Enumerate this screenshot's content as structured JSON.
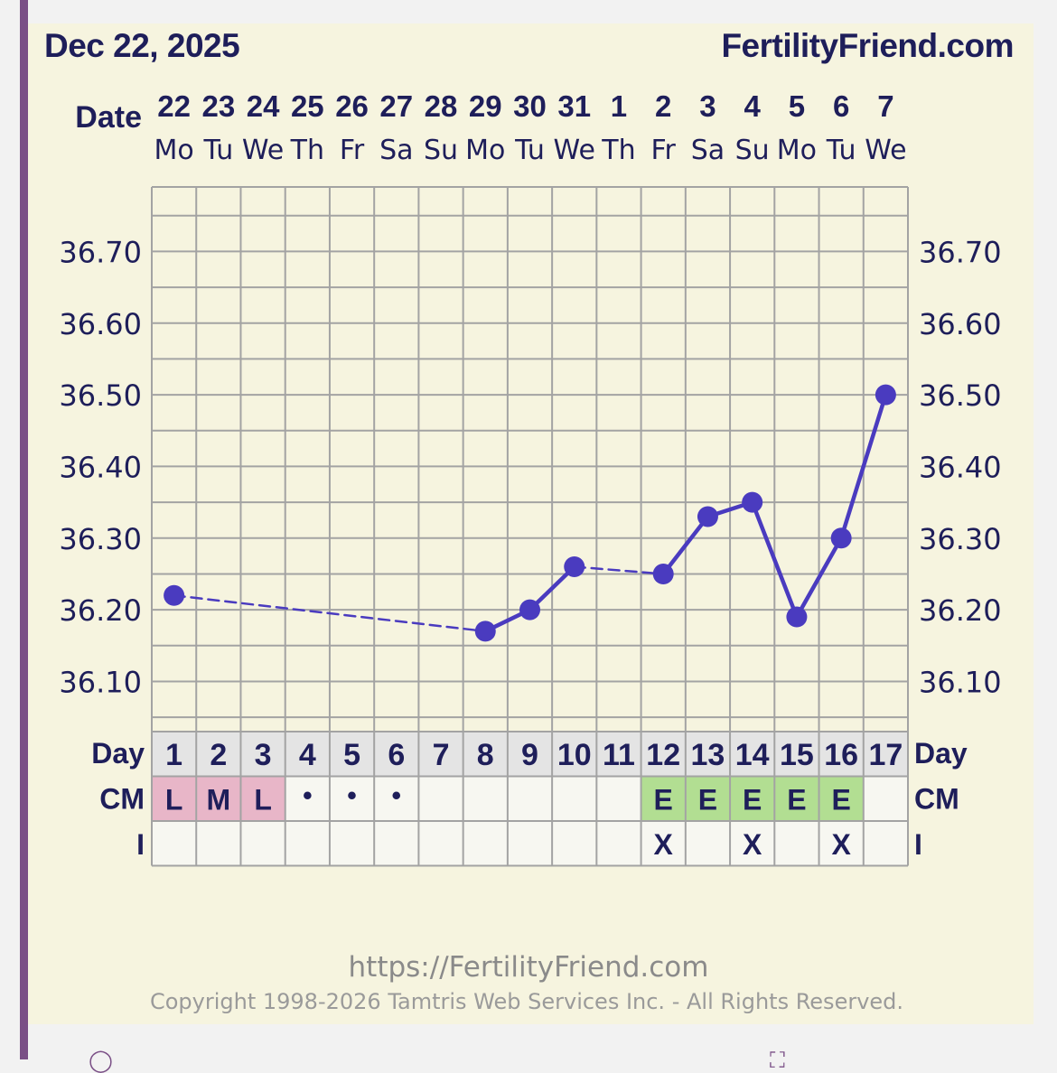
{
  "header": {
    "date": "Dec 22, 2025",
    "site": "FertilityFriend.com"
  },
  "labels": {
    "date_label": "Date",
    "day_label": "Day",
    "cm_label": "CM",
    "i_label": "I"
  },
  "footer": {
    "url": "https://FertilityFriend.com",
    "copyright": "Copyright 1998-2026 Tamtris Web Services Inc. - All Rights Reserved."
  },
  "chart_data": {
    "type": "line",
    "title": "",
    "dates": [
      "22",
      "23",
      "24",
      "25",
      "26",
      "27",
      "28",
      "29",
      "30",
      "31",
      "1",
      "2",
      "3",
      "4",
      "5",
      "6",
      "7"
    ],
    "weekdays": [
      "Mo",
      "Tu",
      "We",
      "Th",
      "Fr",
      "Sa",
      "Su",
      "Mo",
      "Tu",
      "We",
      "Th",
      "Fr",
      "Sa",
      "Su",
      "Mo",
      "Tu",
      "We"
    ],
    "cycle_days": [
      "1",
      "2",
      "3",
      "4",
      "5",
      "6",
      "7",
      "8",
      "9",
      "10",
      "11",
      "12",
      "13",
      "14",
      "15",
      "16",
      "17"
    ],
    "ylim": [
      36.03,
      36.79
    ],
    "y_ticks": [
      "36.70",
      "36.60",
      "36.50",
      "36.40",
      "36.30",
      "36.20",
      "36.10"
    ],
    "temperatures": [
      36.22,
      null,
      null,
      null,
      null,
      null,
      null,
      36.17,
      36.2,
      36.26,
      null,
      36.25,
      36.33,
      36.35,
      36.19,
      36.3,
      36.5
    ],
    "cervical_mucus": [
      "L",
      "M",
      "L",
      "•",
      "•",
      "•",
      "",
      "",
      "",
      "",
      "",
      "E",
      "E",
      "E",
      "E",
      "E",
      ""
    ],
    "intercourse": [
      "",
      "",
      "",
      "",
      "",
      "",
      "",
      "",
      "",
      "",
      "",
      "X",
      "",
      "X",
      "",
      "X",
      ""
    ],
    "colors": {
      "line": "#4a3bbf",
      "menses": "#e8b6c8",
      "egg_white": "#b2de92",
      "text": "#1e1e5a",
      "grid": "#a3a3a3"
    }
  }
}
